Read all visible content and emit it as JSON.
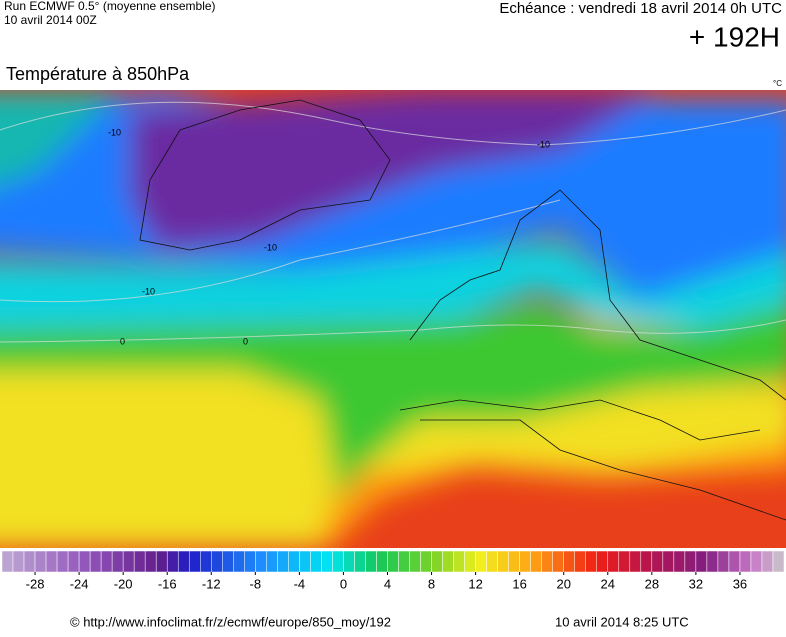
{
  "header": {
    "run": "Run ECMWF 0.5° (moyenne ensemble)",
    "run_date": "10 avril 2014 00Z",
    "echeance": "Echéance : vendredi 18 avril 2014 0h UTC",
    "lead": "+ 192H"
  },
  "title": "Température à 850hPa",
  "unit": "°C",
  "contour_labels": [
    -10,
    -10,
    -10,
    -10,
    0,
    0
  ],
  "colorbar": {
    "range": [
      -31,
      40
    ],
    "ticks": [
      -28,
      -24,
      -20,
      -16,
      -12,
      -8,
      -4,
      0,
      4,
      8,
      12,
      16,
      20,
      24,
      28,
      32,
      36
    ]
  },
  "footer": {
    "source": "© http://www.infoclimat.fr/z/ecmwf/europe/850_moy/192",
    "date": "10 avril 2014  8:25 UTC"
  }
}
